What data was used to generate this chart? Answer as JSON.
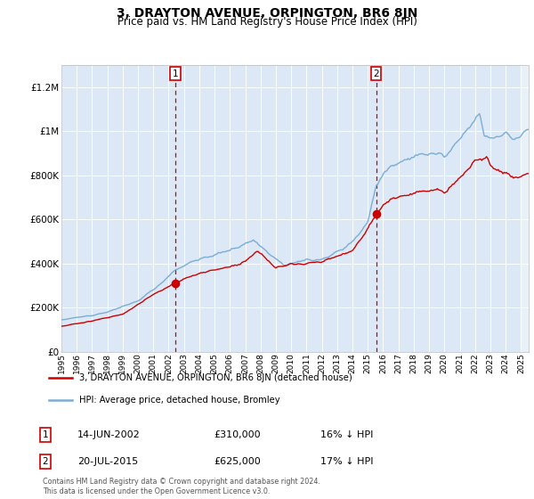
{
  "title": "3, DRAYTON AVENUE, ORPINGTON, BR6 8JN",
  "subtitle": "Price paid vs. HM Land Registry's House Price Index (HPI)",
  "ylim": [
    0,
    1300000
  ],
  "yticks": [
    0,
    200000,
    400000,
    600000,
    800000,
    1000000,
    1200000
  ],
  "ytick_labels": [
    "£0",
    "£200K",
    "£400K",
    "£600K",
    "£800K",
    "£1M",
    "£1.2M"
  ],
  "x_start_year": 1995,
  "x_end_year": 2025,
  "sale1_date": 2002.45,
  "sale1_price": 310000,
  "sale1_label": "14-JUN-2002",
  "sale1_amt": "£310,000",
  "sale1_pct": "16% ↓ HPI",
  "sale2_date": 2015.54,
  "sale2_price": 625000,
  "sale2_label": "20-JUL-2015",
  "sale2_amt": "£625,000",
  "sale2_pct": "17% ↓ HPI",
  "legend_line1": "3, DRAYTON AVENUE, ORPINGTON, BR6 8JN (detached house)",
  "legend_line2": "HPI: Average price, detached house, Bromley",
  "footer": "Contains HM Land Registry data © Crown copyright and database right 2024.\nThis data is licensed under the Open Government Licence v3.0.",
  "bg_color": "#dce8f5",
  "line_color_red": "#cc0000",
  "line_color_blue": "#7aadd4",
  "grid_color": "#ffffff",
  "title_fontsize": 10,
  "subtitle_fontsize": 8.5
}
